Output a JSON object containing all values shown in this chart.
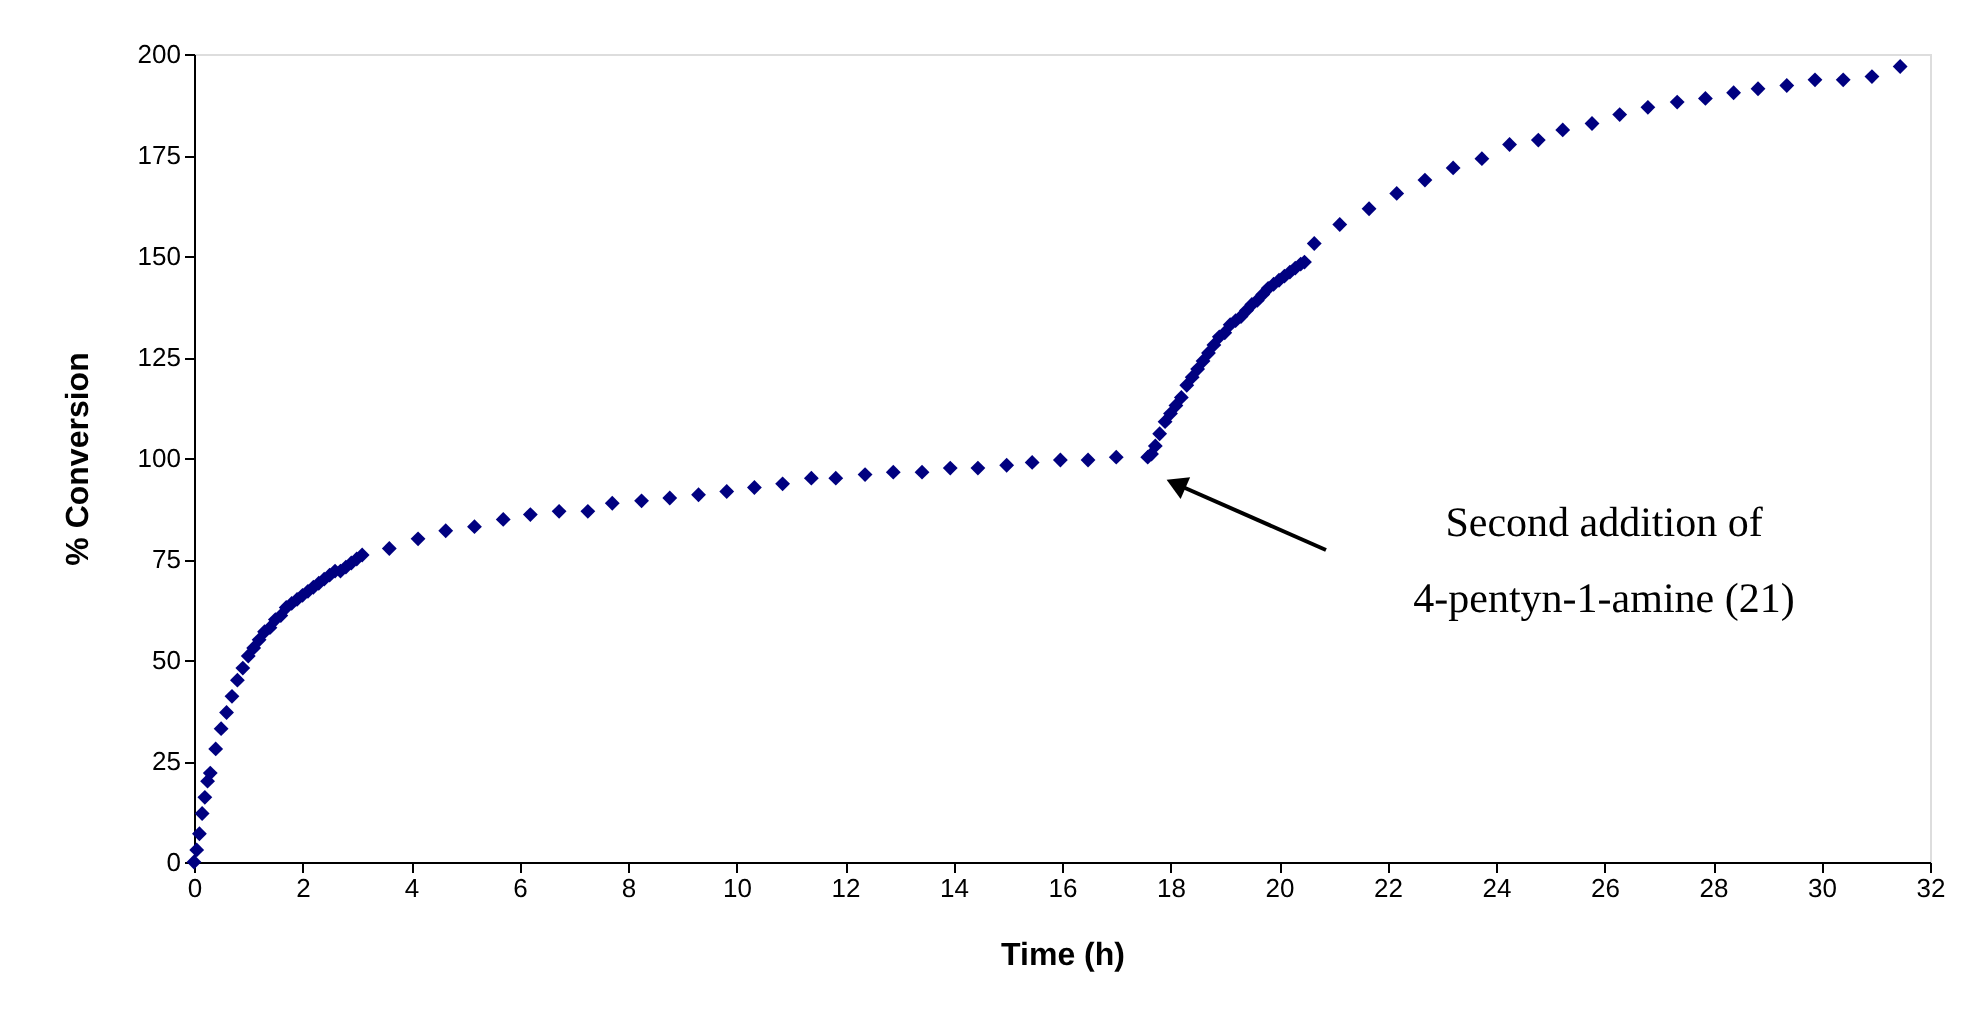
{
  "chart_data": {
    "type": "scatter",
    "xlabel": "Time (h)",
    "ylabel": "% Conversion",
    "x": [
      0,
      0.05,
      0.1,
      0.15,
      0.2,
      0.25,
      0.3,
      0.4,
      0.5,
      0.6,
      0.7,
      0.8,
      0.9,
      1.0,
      1.1,
      1.2,
      1.3,
      1.4,
      1.5,
      1.6,
      1.7,
      1.8,
      1.9,
      2.0,
      2.1,
      2.2,
      2.3,
      2.4,
      2.5,
      2.6,
      2.7,
      2.8,
      2.9,
      3.0,
      3.1,
      3.6,
      4.13,
      4.64,
      5.17,
      5.7,
      6.2,
      6.73,
      7.26,
      7.71,
      8.25,
      8.77,
      9.3,
      9.82,
      10.33,
      10.85,
      11.38,
      11.83,
      12.37,
      12.89,
      13.42,
      13.94,
      14.45,
      14.98,
      15.45,
      15.97,
      16.48,
      17.0,
      17.58,
      17.65,
      17.72,
      17.8,
      17.9,
      18.0,
      18.1,
      18.2,
      18.3,
      18.4,
      18.5,
      18.6,
      18.7,
      18.8,
      18.9,
      19.0,
      19.1,
      19.2,
      19.3,
      19.4,
      19.5,
      19.6,
      19.7,
      19.8,
      19.9,
      20.0,
      20.1,
      20.2,
      20.3,
      20.4,
      20.47,
      20.65,
      21.12,
      21.66,
      22.17,
      22.69,
      23.21,
      23.74,
      24.25,
      24.78,
      25.23,
      25.77,
      26.28,
      26.8,
      27.34,
      27.86,
      28.38,
      28.83,
      29.36,
      29.88,
      30.4,
      30.93,
      31.45
    ],
    "series": [
      {
        "color": "#000080",
        "values": [
          0,
          3,
          7,
          12,
          16,
          20,
          22,
          28,
          33,
          37,
          41,
          45,
          48,
          51,
          53,
          55,
          57,
          58,
          60,
          61,
          63,
          64,
          65,
          66,
          67,
          68,
          69,
          70,
          71,
          72,
          72,
          73,
          74,
          75,
          76,
          77.6,
          80,
          82,
          83,
          84.8,
          86,
          86.8,
          86.8,
          88.8,
          89.4,
          90.1,
          90.9,
          91.7,
          92.7,
          93.6,
          95,
          95,
          95.9,
          96.5,
          96.5,
          97.5,
          97.5,
          98.2,
          98.9,
          99.5,
          99.5,
          100.2,
          100.2,
          101,
          103,
          106,
          109,
          111,
          113,
          115,
          118,
          120,
          122,
          124,
          126,
          128,
          130,
          131,
          133,
          134,
          135,
          136.5,
          138,
          139,
          140.5,
          142,
          143,
          144,
          145,
          146,
          147,
          148,
          148.5,
          153.1,
          157.8,
          161.7,
          165.5,
          168.8,
          171.8,
          174.1,
          177.6,
          178.7,
          181.2,
          182.8,
          185,
          186.8,
          188.1,
          189,
          190.4,
          191.4,
          192.2,
          193.6,
          193.6,
          194.4,
          196.9
        ]
      }
    ],
    "xlim": [
      0,
      32
    ],
    "xticks": [
      0,
      2,
      4,
      6,
      8,
      10,
      12,
      14,
      16,
      18,
      20,
      22,
      24,
      26,
      28,
      30,
      32
    ],
    "ylim": [
      0,
      200
    ],
    "yticks": [
      0,
      25,
      50,
      75,
      100,
      125,
      150,
      175,
      200
    ],
    "grid": false,
    "marker": "diamond",
    "annotations": [
      "Second addition of\n4-pentyn-1-amine (21)"
    ]
  }
}
